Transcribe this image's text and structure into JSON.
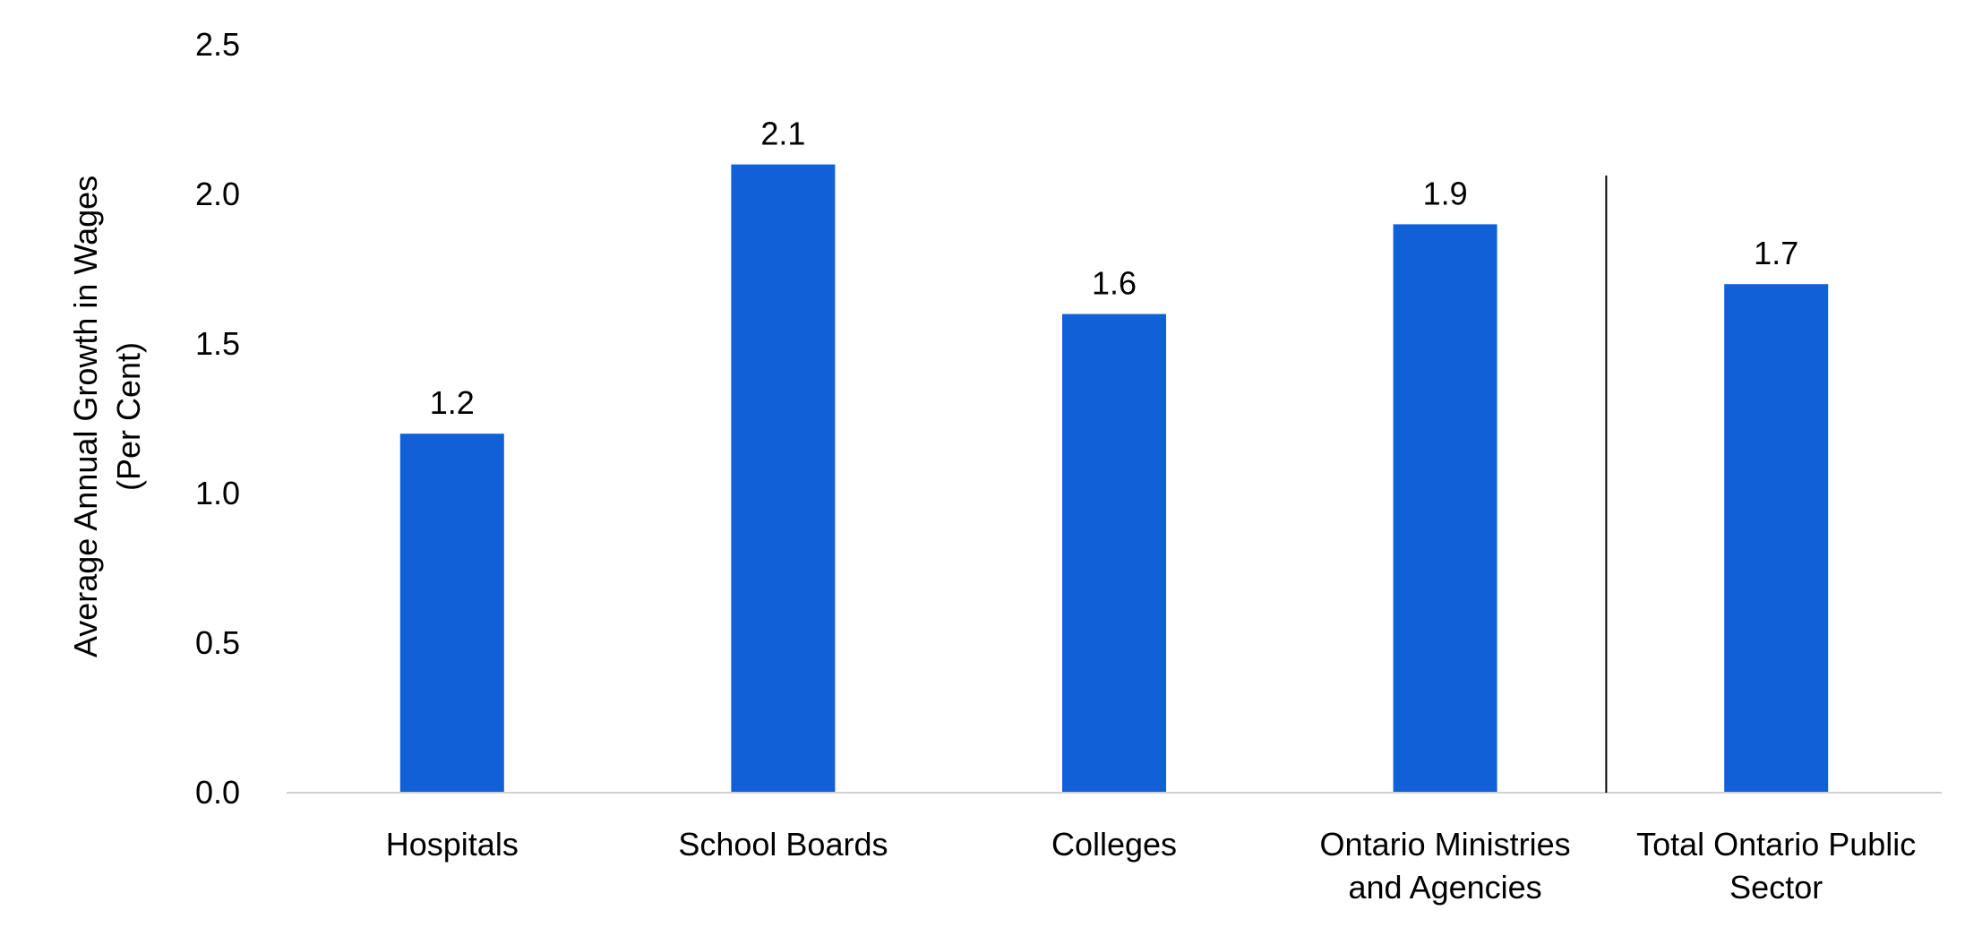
{
  "chart_data": {
    "type": "bar",
    "ylabel_lines": [
      "Average Annual Growth in Wages",
      "(Per Cent)"
    ],
    "xlabel": "",
    "categories": [
      [
        "Hospitals"
      ],
      [
        "School Boards"
      ],
      [
        "Colleges"
      ],
      [
        "Ontario Ministries",
        "and Agencies"
      ],
      [
        "Total Ontario Public",
        "Sector"
      ]
    ],
    "values": [
      1.2,
      2.1,
      1.6,
      1.9,
      1.7
    ],
    "data_labels": [
      "1.2",
      "2.1",
      "1.6",
      "1.9",
      "1.7"
    ],
    "ylim": [
      0,
      2.5
    ],
    "yticks": [
      0.0,
      0.5,
      1.0,
      1.5,
      2.0,
      2.5
    ],
    "ytick_labels": [
      "0.0",
      "0.5",
      "1.0",
      "1.5",
      "2.0",
      "2.5"
    ],
    "bar_color": "#1060D8",
    "grid": false,
    "legend": "none",
    "separator_before_last_category": true
  }
}
